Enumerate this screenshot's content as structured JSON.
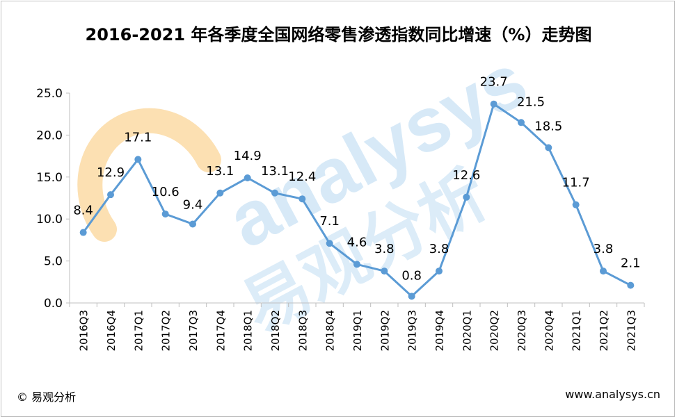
{
  "title": "2016-2021 年各季度全国网络零售渗透指数同比增速（%）走势图",
  "footer": {
    "source": "© 易观分析",
    "url": "www.analysys.cn"
  },
  "watermark": {
    "latin": "analysys",
    "cjk": "易观分析"
  },
  "colors": {
    "line": "#5b9bd5",
    "axis": "#bfbfbf",
    "watermark_orange": "#f5a623",
    "watermark_blue": "#8fc3ea"
  },
  "chart_data": {
    "type": "line",
    "title": "2016-2021 年各季度全国网络零售渗透指数同比增速（%）走势图",
    "categories": [
      "2016Q3",
      "2016Q4",
      "2017Q1",
      "2017Q2",
      "2017Q3",
      "2017Q4",
      "2018Q1",
      "2018Q2",
      "2018Q3",
      "2018Q4",
      "2019Q1",
      "2019Q2",
      "2019Q3",
      "2019Q4",
      "2020Q1",
      "2020Q2",
      "2020Q3",
      "2020Q4",
      "2021Q1",
      "2021Q2",
      "2021Q3"
    ],
    "values": [
      8.4,
      12.9,
      17.1,
      10.6,
      9.4,
      13.1,
      14.9,
      13.1,
      12.4,
      7.1,
      4.6,
      3.8,
      0.8,
      3.8,
      12.6,
      23.7,
      21.5,
      18.5,
      11.7,
      3.8,
      2.1
    ],
    "ylim": [
      0,
      25
    ],
    "yticks": [
      "0.0",
      "5.0",
      "10.0",
      "15.0",
      "20.0",
      "25.0"
    ],
    "grid": false,
    "legend": "none"
  }
}
